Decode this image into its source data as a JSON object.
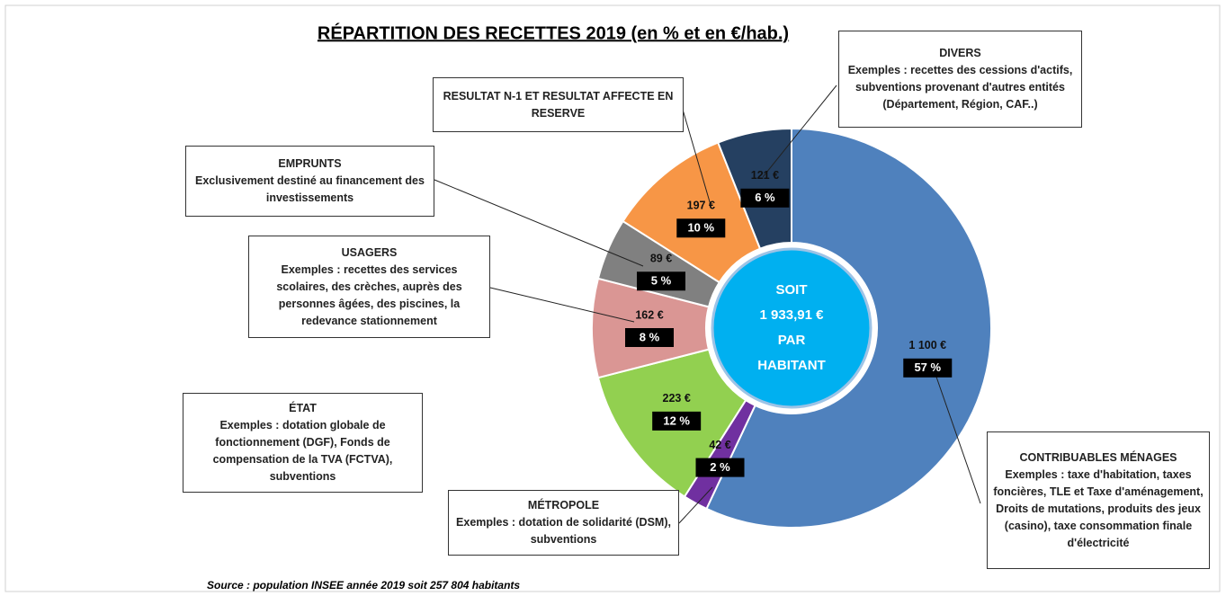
{
  "chart_data": {
    "type": "donut",
    "title": "RÉPARTITION DES RECETTES 2019 (en % et en €/hab.)",
    "categories": [
      "CONTRIBUABLES MÉNAGES",
      "MÉTROPOLE",
      "ÉTAT",
      "USAGERS",
      "EMPRUNTS",
      "RESULTAT N-1 ET RESULTAT AFFECTE EN RESERVE",
      "DIVERS"
    ],
    "descriptions": [
      "Exemples : taxe d'habitation, taxes foncières, TLE et Taxe d'aménagement, Droits de mutations, produits des jeux (casino), taxe consommation finale d'électricité",
      "Exemples : dotation de solidarité (DSM), subventions",
      "Exemples : dotation globale de fonctionnement (DGF), Fonds de compensation de la TVA (FCTVA), subventions",
      "Exemples : recettes des services scolaires, des crèches, auprès des personnes âgées, des piscines, la redevance stationnement",
      "Exclusivement destiné au financement des investissements",
      null,
      "Exemples : recettes des cessions d'actifs, subventions provenant d'autres entités (Département, Région, CAF..)"
    ],
    "values": [
      57,
      2,
      12,
      8,
      5,
      10,
      6
    ],
    "value_labels": [
      "57 %",
      "2 %",
      "12 %",
      "8 %",
      "5 %",
      "10 %",
      "6 %"
    ],
    "amounts": [
      1100,
      42,
      223,
      162,
      89,
      197,
      121
    ],
    "amount_labels": [
      "1 100 €",
      "42 €",
      "223 €",
      "162 €",
      "89 €",
      "197 €",
      "121 €"
    ],
    "colors": [
      "#4f81bd",
      "#7030a0",
      "#92d050",
      "#da9694",
      "#808080",
      "#f79646",
      "#254061"
    ],
    "center_text": [
      "SOIT",
      "1 933,91 €",
      "PAR",
      "HABITANT"
    ],
    "source": "Source : population INSEE année 2019 soit 257 804 habitants"
  }
}
